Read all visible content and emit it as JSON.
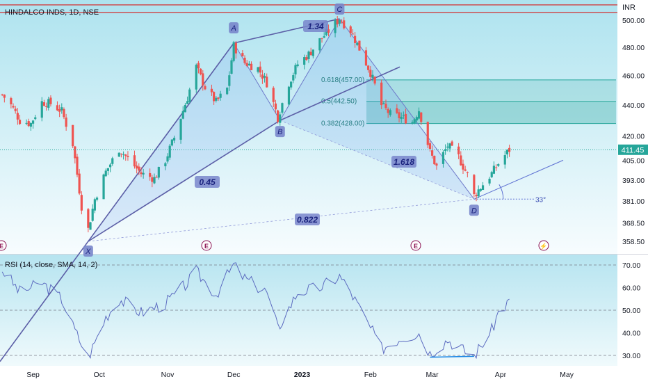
{
  "symbol_title": "HINDALCO INDS, 1D, NSE",
  "currency": "INR",
  "last_price_label": "411.45",
  "colors": {
    "up": "#26a69a",
    "down": "#ef5350",
    "pattern": "#5b5ea6",
    "ratio_box": "#7986cb",
    "fib": "#26a69a",
    "red_line": "#d32f2f"
  },
  "price_axis": {
    "ticks": [
      "500.00",
      "480.00",
      "460.00",
      "440.00",
      "420.00",
      "405.00",
      "393.00",
      "381.00",
      "368.50",
      "358.50"
    ],
    "scale": "log"
  },
  "time_axis": {
    "labels": [
      "Sep",
      "Oct",
      "Nov",
      "Dec",
      "2023",
      "Feb",
      "Mar",
      "Apr",
      "May"
    ]
  },
  "harmonic": {
    "points": [
      {
        "label": "X",
        "date": "2022-09-26",
        "price": 358.5
      },
      {
        "label": "A",
        "date": "2022-12-01",
        "price": 483
      },
      {
        "label": "B",
        "date": "2022-12-22",
        "price": 430
      },
      {
        "label": "C",
        "date": "2023-01-18",
        "price": 501
      },
      {
        "label": "D",
        "date": "2023-03-20",
        "price": 382
      }
    ],
    "ratios": [
      "1.34",
      "0.45",
      "0.822",
      "1.618"
    ],
    "angle_label": "33°"
  },
  "fib_levels": [
    {
      "ratio": "0.618",
      "price": 457.0,
      "label": "0.618(457.00)"
    },
    {
      "ratio": "0.5",
      "price": 442.5,
      "label": "0.5(442.50)"
    },
    {
      "ratio": "0.382",
      "price": 428.0,
      "label": "0.382(428.00)"
    }
  ],
  "markers": [
    "E",
    "E",
    "E",
    "⚡"
  ],
  "rsi": {
    "title": "RSI (14, close, SMA, 14, 2)",
    "ticks": [
      "70.00",
      "60.00",
      "50.00",
      "40.00",
      "30.00"
    ]
  },
  "chart_data": {
    "type": "candlestick",
    "title": "HINDALCO INDS, 1D, NSE",
    "ylabel": "INR",
    "ylim": [
      355,
      505
    ],
    "y_scale": "log",
    "grid": false,
    "last_price": 411.45,
    "close_series": [
      [
        "2022-08-18",
        447
      ],
      [
        "2022-08-22",
        440
      ],
      [
        "2022-08-26",
        430
      ],
      [
        "2022-08-31",
        428
      ],
      [
        "2022-09-05",
        442
      ],
      [
        "2022-09-09",
        441
      ],
      [
        "2022-09-14",
        436
      ],
      [
        "2022-09-19",
        415
      ],
      [
        "2022-09-23",
        378
      ],
      [
        "2022-09-26",
        365
      ],
      [
        "2022-09-29",
        382
      ],
      [
        "2022-10-04",
        398
      ],
      [
        "2022-10-10",
        412
      ],
      [
        "2022-10-14",
        406
      ],
      [
        "2022-10-20",
        397
      ],
      [
        "2022-10-26",
        394
      ],
      [
        "2022-10-31",
        405
      ],
      [
        "2022-11-04",
        419
      ],
      [
        "2022-11-10",
        445
      ],
      [
        "2022-11-14",
        466
      ],
      [
        "2022-11-18",
        452
      ],
      [
        "2022-11-23",
        442
      ],
      [
        "2022-11-28",
        451
      ],
      [
        "2022-12-01",
        481
      ],
      [
        "2022-12-06",
        469
      ],
      [
        "2022-12-12",
        465
      ],
      [
        "2022-12-16",
        455
      ],
      [
        "2022-12-21",
        432
      ],
      [
        "2022-12-26",
        455
      ],
      [
        "2022-12-30",
        468
      ],
      [
        "2023-01-04",
        475
      ],
      [
        "2023-01-09",
        485
      ],
      [
        "2023-01-13",
        492
      ],
      [
        "2023-01-18",
        501
      ],
      [
        "2023-01-23",
        492
      ],
      [
        "2023-01-27",
        479
      ],
      [
        "2023-02-01",
        462
      ],
      [
        "2023-02-06",
        440
      ],
      [
        "2023-02-10",
        434
      ],
      [
        "2023-02-15",
        432
      ],
      [
        "2023-02-20",
        429
      ],
      [
        "2023-02-23",
        437
      ],
      [
        "2023-02-28",
        410
      ],
      [
        "2023-03-03",
        401
      ],
      [
        "2023-03-08",
        414
      ],
      [
        "2023-03-13",
        407
      ],
      [
        "2023-03-17",
        396
      ],
      [
        "2023-03-20",
        384
      ],
      [
        "2023-03-23",
        389
      ],
      [
        "2023-03-28",
        397
      ],
      [
        "2023-03-31",
        403
      ],
      [
        "2023-04-05",
        411.45
      ]
    ],
    "rsi_series": [
      [
        "2022-08-18",
        68
      ],
      [
        "2022-08-26",
        58
      ],
      [
        "2022-09-05",
        62
      ],
      [
        "2022-09-14",
        55
      ],
      [
        "2022-09-19",
        43
      ],
      [
        "2022-09-26",
        29
      ],
      [
        "2022-10-04",
        47
      ],
      [
        "2022-10-10",
        55
      ],
      [
        "2022-10-20",
        49
      ],
      [
        "2022-10-31",
        53
      ],
      [
        "2022-11-10",
        62
      ],
      [
        "2022-11-14",
        67
      ],
      [
        "2022-11-23",
        57
      ],
      [
        "2022-12-01",
        70
      ],
      [
        "2022-12-06",
        64
      ],
      [
        "2022-12-16",
        58
      ],
      [
        "2022-12-21",
        42
      ],
      [
        "2022-12-30",
        58
      ],
      [
        "2023-01-09",
        60
      ],
      [
        "2023-01-18",
        65
      ],
      [
        "2023-01-23",
        58
      ],
      [
        "2023-02-01",
        42
      ],
      [
        "2023-02-06",
        33
      ],
      [
        "2023-02-15",
        38
      ],
      [
        "2023-02-23",
        40
      ],
      [
        "2023-02-28",
        31
      ],
      [
        "2023-03-08",
        37
      ],
      [
        "2023-03-17",
        31
      ],
      [
        "2023-03-20",
        30
      ],
      [
        "2023-03-28",
        41
      ],
      [
        "2023-03-31",
        49
      ],
      [
        "2023-04-05",
        54
      ]
    ],
    "rsi_ylim": [
      25,
      75
    ]
  }
}
